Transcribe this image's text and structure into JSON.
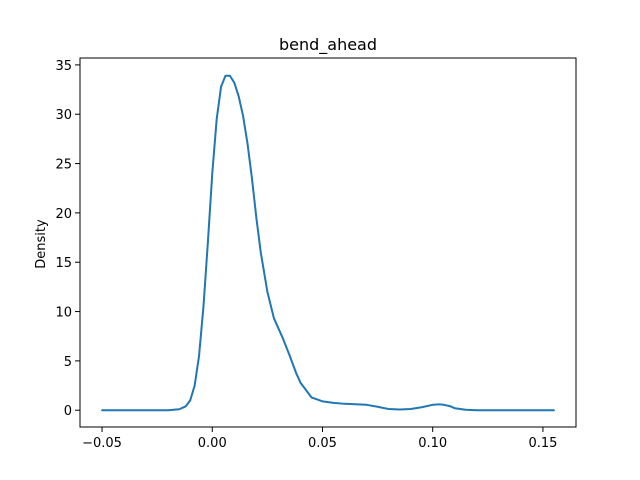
{
  "chart_data": {
    "type": "line",
    "title": "bend_ahead",
    "xlabel": "",
    "ylabel": "Density",
    "xlim": [
      -0.06,
      0.165
    ],
    "ylim": [
      -1.7,
      35.7
    ],
    "xticks": [
      -0.05,
      0.0,
      0.05,
      0.1,
      0.15
    ],
    "xtick_labels": [
      "−0.05",
      "0.00",
      "0.05",
      "0.10",
      "0.15"
    ],
    "yticks": [
      0,
      5,
      10,
      15,
      20,
      25,
      30,
      35
    ],
    "ytick_labels": [
      "0",
      "5",
      "10",
      "15",
      "20",
      "25",
      "30",
      "35"
    ],
    "grid": false,
    "legend": "none",
    "line_color": "#1f77b4",
    "series": [
      {
        "x": [
          -0.05,
          -0.04,
          -0.03,
          -0.02,
          -0.015,
          -0.012,
          -0.01,
          -0.008,
          -0.006,
          -0.004,
          -0.002,
          0.0,
          0.002,
          0.004,
          0.006,
          0.008,
          0.01,
          0.012,
          0.014,
          0.016,
          0.018,
          0.02,
          0.022,
          0.025,
          0.028,
          0.03,
          0.032,
          0.035,
          0.038,
          0.04,
          0.045,
          0.05,
          0.055,
          0.06,
          0.065,
          0.07,
          0.075,
          0.08,
          0.085,
          0.09,
          0.095,
          0.1,
          0.103,
          0.105,
          0.108,
          0.11,
          0.115,
          0.12,
          0.13,
          0.14,
          0.155
        ],
        "y": [
          0.0,
          0.0,
          0.0,
          0.0,
          0.1,
          0.4,
          1.0,
          2.5,
          5.5,
          10.5,
          17.0,
          24.0,
          29.5,
          32.8,
          33.9,
          33.9,
          33.2,
          31.8,
          29.8,
          27.0,
          23.5,
          19.5,
          16.0,
          12.0,
          9.3,
          8.3,
          7.3,
          5.6,
          3.8,
          2.8,
          1.3,
          0.9,
          0.75,
          0.65,
          0.6,
          0.55,
          0.35,
          0.12,
          0.08,
          0.12,
          0.3,
          0.55,
          0.6,
          0.55,
          0.4,
          0.2,
          0.05,
          0.0,
          0.0,
          0.0,
          0.0
        ]
      }
    ]
  }
}
